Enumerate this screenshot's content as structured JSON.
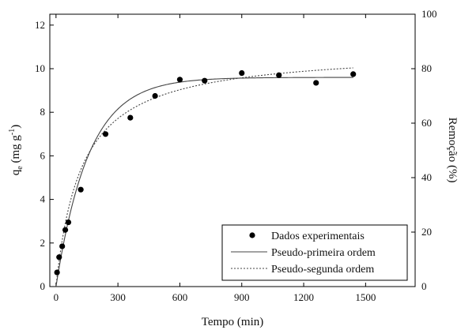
{
  "chart_data": {
    "type": "scatter",
    "xlabel": "Tempo (min)",
    "ylabel": "q",
    "ylabel_subscript": "e",
    "ylabel_unit": " (mg g",
    "ylabel_unit_sup": "-1",
    "ylabel_close": ")",
    "y2label": "Remoção (%)",
    "xlim": [
      -30,
      1740
    ],
    "ylim": [
      0,
      12.5
    ],
    "y2lim": [
      0,
      100
    ],
    "xticks": [
      0,
      300,
      600,
      900,
      1200,
      1500
    ],
    "yticks": [
      0,
      2,
      4,
      6,
      8,
      10,
      12
    ],
    "y2ticks": [
      0,
      20,
      40,
      60,
      80,
      100
    ],
    "legend_position": "bottom-right",
    "series": [
      {
        "name": "Dados experimentais",
        "kind": "points",
        "color": "#000000",
        "x": [
          5,
          15,
          30,
          45,
          60,
          120,
          240,
          360,
          480,
          600,
          720,
          900,
          1080,
          1260,
          1440
        ],
        "y": [
          0.65,
          1.35,
          1.85,
          2.6,
          2.95,
          4.45,
          7.0,
          7.75,
          8.75,
          9.5,
          9.45,
          9.8,
          9.7,
          9.35,
          9.75
        ]
      },
      {
        "name": "Pseudo-primeira ordem",
        "kind": "solid-line",
        "color": "#444444",
        "model": "pfo",
        "qe": 9.6,
        "k": 0.0063,
        "x_range": [
          0,
          1440
        ]
      },
      {
        "name": "Pseudo-segunda ordem",
        "kind": "dotted-line",
        "color": "#444444",
        "model": "pso",
        "qe": 10.9,
        "k": 0.00074,
        "x_range": [
          0,
          1440
        ]
      }
    ]
  }
}
